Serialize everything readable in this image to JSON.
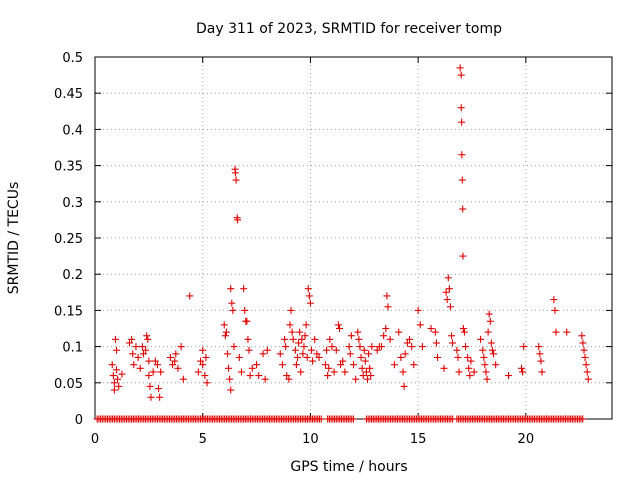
{
  "chart_data": {
    "type": "scatter",
    "title": "Day 311 of 2023, SRMTID for receiver tomp",
    "xlabel": "GPS time / hours",
    "ylabel": "SRMTID / TECUs",
    "xlim": [
      0,
      24
    ],
    "ylim": [
      0,
      0.5
    ],
    "xticks": [
      0,
      5,
      10,
      15,
      20
    ],
    "yticks": [
      0,
      0.05,
      0.1,
      0.15,
      0.2,
      0.25,
      0.3,
      0.35,
      0.4,
      0.45,
      0.5
    ],
    "xtick_labels": [
      "0",
      "5",
      "10",
      "15",
      "20"
    ],
    "ytick_labels": [
      "0",
      "0.05",
      "0.1",
      "0.15",
      "0.2",
      "0.25",
      "0.3",
      "0.35",
      "0.4",
      "0.45",
      "0.5"
    ],
    "grid": true,
    "series": [
      {
        "name": "SRMTID",
        "color": "#e00000",
        "marker": "plus",
        "points": [
          [
            0.8,
            0.075
          ],
          [
            0.85,
            0.06
          ],
          [
            0.9,
            0.05
          ],
          [
            0.9,
            0.04
          ],
          [
            0.95,
            0.11
          ],
          [
            1.0,
            0.095
          ],
          [
            1.0,
            0.068
          ],
          [
            1.05,
            0.055
          ],
          [
            1.1,
            0.045
          ],
          [
            1.25,
            0.062
          ],
          [
            1.6,
            0.105
          ],
          [
            1.7,
            0.11
          ],
          [
            1.75,
            0.09
          ],
          [
            1.8,
            0.075
          ],
          [
            1.9,
            0.1
          ],
          [
            2.0,
            0.085
          ],
          [
            2.1,
            0.07
          ],
          [
            2.2,
            0.1
          ],
          [
            2.25,
            0.09
          ],
          [
            2.35,
            0.095
          ],
          [
            2.4,
            0.115
          ],
          [
            2.45,
            0.11
          ],
          [
            2.5,
            0.08
          ],
          [
            2.5,
            0.06
          ],
          [
            2.55,
            0.045
          ],
          [
            2.6,
            0.03
          ],
          [
            2.7,
            0.065
          ],
          [
            2.8,
            0.08
          ],
          [
            2.9,
            0.075
          ],
          [
            2.95,
            0.042
          ],
          [
            3.0,
            0.03
          ],
          [
            3.05,
            0.065
          ],
          [
            3.5,
            0.085
          ],
          [
            3.6,
            0.075
          ],
          [
            3.7,
            0.08
          ],
          [
            3.75,
            0.09
          ],
          [
            3.85,
            0.07
          ],
          [
            4.0,
            0.1
          ],
          [
            4.1,
            0.055
          ],
          [
            4.4,
            0.17
          ],
          [
            4.8,
            0.065
          ],
          [
            4.9,
            0.08
          ],
          [
            5.0,
            0.095
          ],
          [
            5.0,
            0.075
          ],
          [
            5.1,
            0.06
          ],
          [
            5.15,
            0.085
          ],
          [
            5.2,
            0.05
          ],
          [
            6.0,
            0.13
          ],
          [
            6.05,
            0.115
          ],
          [
            6.1,
            0.12
          ],
          [
            6.15,
            0.09
          ],
          [
            6.2,
            0.07
          ],
          [
            6.25,
            0.055
          ],
          [
            6.3,
            0.04
          ],
          [
            6.3,
            0.18
          ],
          [
            6.35,
            0.16
          ],
          [
            6.4,
            0.15
          ],
          [
            6.45,
            0.1
          ],
          [
            6.5,
            0.345
          ],
          [
            6.52,
            0.34
          ],
          [
            6.55,
            0.33
          ],
          [
            6.6,
            0.278
          ],
          [
            6.62,
            0.275
          ],
          [
            6.7,
            0.085
          ],
          [
            6.8,
            0.065
          ],
          [
            6.9,
            0.18
          ],
          [
            6.95,
            0.15
          ],
          [
            7.0,
            0.135
          ],
          [
            7.05,
            0.135
          ],
          [
            7.1,
            0.11
          ],
          [
            7.15,
            0.095
          ],
          [
            7.2,
            0.06
          ],
          [
            7.3,
            0.07
          ],
          [
            7.5,
            0.075
          ],
          [
            7.6,
            0.06
          ],
          [
            7.8,
            0.09
          ],
          [
            7.9,
            0.055
          ],
          [
            8.0,
            0.095
          ],
          [
            8.6,
            0.09
          ],
          [
            8.7,
            0.075
          ],
          [
            8.8,
            0.11
          ],
          [
            8.85,
            0.1
          ],
          [
            8.9,
            0.06
          ],
          [
            9.0,
            0.055
          ],
          [
            9.05,
            0.13
          ],
          [
            9.1,
            0.15
          ],
          [
            9.15,
            0.12
          ],
          [
            9.2,
            0.11
          ],
          [
            9.3,
            0.095
          ],
          [
            9.35,
            0.075
          ],
          [
            9.4,
            0.085
          ],
          [
            9.45,
            0.105
          ],
          [
            9.5,
            0.12
          ],
          [
            9.55,
            0.065
          ],
          [
            9.6,
            0.11
          ],
          [
            9.65,
            0.09
          ],
          [
            9.7,
            0.1
          ],
          [
            9.75,
            0.115
          ],
          [
            9.8,
            0.13
          ],
          [
            9.85,
            0.085
          ],
          [
            9.9,
            0.18
          ],
          [
            9.95,
            0.17
          ],
          [
            10.0,
            0.16
          ],
          [
            10.05,
            0.095
          ],
          [
            10.1,
            0.08
          ],
          [
            10.2,
            0.11
          ],
          [
            10.3,
            0.09
          ],
          [
            10.4,
            0.085
          ],
          [
            10.7,
            0.075
          ],
          [
            10.75,
            0.095
          ],
          [
            10.8,
            0.06
          ],
          [
            10.85,
            0.07
          ],
          [
            10.9,
            0.11
          ],
          [
            11.0,
            0.1
          ],
          [
            11.1,
            0.065
          ],
          [
            11.2,
            0.095
          ],
          [
            11.3,
            0.13
          ],
          [
            11.35,
            0.125
          ],
          [
            11.4,
            0.075
          ],
          [
            11.5,
            0.08
          ],
          [
            11.6,
            0.065
          ],
          [
            11.8,
            0.1
          ],
          [
            11.85,
            0.09
          ],
          [
            11.9,
            0.115
          ],
          [
            12.0,
            0.075
          ],
          [
            12.1,
            0.055
          ],
          [
            12.2,
            0.12
          ],
          [
            12.25,
            0.11
          ],
          [
            12.3,
            0.1
          ],
          [
            12.35,
            0.085
          ],
          [
            12.4,
            0.07
          ],
          [
            12.45,
            0.06
          ],
          [
            12.5,
            0.095
          ],
          [
            12.55,
            0.08
          ],
          [
            12.6,
            0.065
          ],
          [
            12.65,
            0.055
          ],
          [
            12.7,
            0.09
          ],
          [
            12.75,
            0.07
          ],
          [
            12.8,
            0.06
          ],
          [
            12.85,
            0.1
          ],
          [
            13.1,
            0.095
          ],
          [
            13.2,
            0.1
          ],
          [
            13.3,
            0.1
          ],
          [
            13.4,
            0.115
          ],
          [
            13.5,
            0.125
          ],
          [
            13.55,
            0.17
          ],
          [
            13.6,
            0.155
          ],
          [
            13.7,
            0.11
          ],
          [
            13.9,
            0.075
          ],
          [
            14.1,
            0.12
          ],
          [
            14.2,
            0.085
          ],
          [
            14.3,
            0.065
          ],
          [
            14.35,
            0.045
          ],
          [
            14.4,
            0.09
          ],
          [
            14.5,
            0.105
          ],
          [
            14.6,
            0.11
          ],
          [
            14.7,
            0.1
          ],
          [
            14.8,
            0.075
          ],
          [
            15.0,
            0.15
          ],
          [
            15.1,
            0.13
          ],
          [
            15.2,
            0.1
          ],
          [
            15.6,
            0.125
          ],
          [
            15.8,
            0.12
          ],
          [
            15.85,
            0.105
          ],
          [
            15.9,
            0.085
          ],
          [
            16.2,
            0.07
          ],
          [
            16.3,
            0.175
          ],
          [
            16.35,
            0.165
          ],
          [
            16.4,
            0.195
          ],
          [
            16.45,
            0.18
          ],
          [
            16.5,
            0.155
          ],
          [
            16.55,
            0.115
          ],
          [
            16.6,
            0.105
          ],
          [
            16.8,
            0.095
          ],
          [
            16.85,
            0.085
          ],
          [
            16.9,
            0.065
          ],
          [
            16.95,
            0.485
          ],
          [
            17.0,
            0.475
          ],
          [
            17.0,
            0.43
          ],
          [
            17.02,
            0.41
          ],
          [
            17.03,
            0.365
          ],
          [
            17.05,
            0.33
          ],
          [
            17.07,
            0.29
          ],
          [
            17.08,
            0.225
          ],
          [
            17.1,
            0.125
          ],
          [
            17.15,
            0.12
          ],
          [
            17.2,
            0.1
          ],
          [
            17.3,
            0.085
          ],
          [
            17.35,
            0.07
          ],
          [
            17.4,
            0.06
          ],
          [
            17.45,
            0.08
          ],
          [
            17.6,
            0.065
          ],
          [
            17.9,
            0.11
          ],
          [
            18.0,
            0.095
          ],
          [
            18.05,
            0.085
          ],
          [
            18.1,
            0.075
          ],
          [
            18.15,
            0.065
          ],
          [
            18.2,
            0.055
          ],
          [
            18.25,
            0.12
          ],
          [
            18.3,
            0.145
          ],
          [
            18.35,
            0.135
          ],
          [
            18.4,
            0.105
          ],
          [
            18.45,
            0.095
          ],
          [
            18.5,
            0.09
          ],
          [
            18.6,
            0.075
          ],
          [
            19.2,
            0.06
          ],
          [
            19.8,
            0.07
          ],
          [
            19.85,
            0.065
          ],
          [
            19.9,
            0.1
          ],
          [
            20.6,
            0.1
          ],
          [
            20.65,
            0.09
          ],
          [
            20.7,
            0.08
          ],
          [
            20.75,
            0.065
          ],
          [
            21.3,
            0.165
          ],
          [
            21.35,
            0.15
          ],
          [
            21.4,
            0.12
          ],
          [
            21.9,
            0.12
          ],
          [
            22.6,
            0.115
          ],
          [
            22.65,
            0.105
          ],
          [
            22.7,
            0.095
          ],
          [
            22.75,
            0.085
          ],
          [
            22.8,
            0.075
          ],
          [
            22.85,
            0.065
          ],
          [
            22.9,
            0.055
          ]
        ]
      }
    ],
    "zero_bands": [
      [
        0.1,
        10.5
      ],
      [
        10.8,
        12.0
      ],
      [
        12.6,
        16.6
      ],
      [
        16.8,
        22.7
      ]
    ]
  }
}
